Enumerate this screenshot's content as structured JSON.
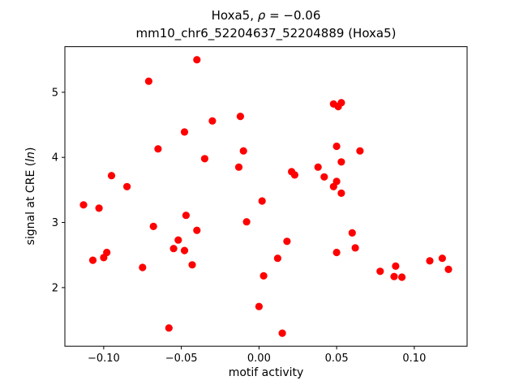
{
  "figure": {
    "title": {
      "part1": "Hoxa5, ",
      "rho": "ρ",
      "part2": " = −0.06"
    },
    "subtitle": "mm10_chr6_52204637_52204889 (Hoxa5)",
    "xlabel": "motif activity",
    "ylabel": {
      "part1": "signal at CRE (",
      "italic": "ln",
      "part2": ")"
    }
  },
  "chart_data": {
    "type": "scatter",
    "title": "Hoxa5, ρ = −0.06",
    "subtitle": "mm10_chr6_52204637_52204889 (Hoxa5)",
    "xlabel": "motif activity",
    "ylabel": "signal at CRE (ln)",
    "xlim": [
      -0.125,
      0.134
    ],
    "ylim": [
      1.1,
      5.7
    ],
    "x_ticks": [
      -0.1,
      -0.05,
      0.0,
      0.05,
      0.1
    ],
    "x_tick_labels": [
      "−0.10",
      "−0.05",
      "0.00",
      "0.05",
      "0.10"
    ],
    "y_ticks": [
      2,
      3,
      4,
      5
    ],
    "y_tick_labels": [
      "2",
      "3",
      "4",
      "5"
    ],
    "grid": false,
    "legend": null,
    "marker_color": "#ff0000",
    "marker_radius": 4.6,
    "points": [
      [
        -0.04,
        5.5
      ],
      [
        -0.071,
        5.17
      ],
      [
        0.048,
        4.82
      ],
      [
        0.053,
        4.84
      ],
      [
        0.051,
        4.78
      ],
      [
        -0.012,
        4.63
      ],
      [
        -0.03,
        4.56
      ],
      [
        -0.048,
        4.39
      ],
      [
        -0.065,
        4.13
      ],
      [
        -0.01,
        4.1
      ],
      [
        0.065,
        4.1
      ],
      [
        0.05,
        4.17
      ],
      [
        0.053,
        3.93
      ],
      [
        -0.035,
        3.98
      ],
      [
        -0.013,
        3.85
      ],
      [
        0.038,
        3.85
      ],
      [
        -0.095,
        3.72
      ],
      [
        0.021,
        3.78
      ],
      [
        0.023,
        3.73
      ],
      [
        0.042,
        3.7
      ],
      [
        0.05,
        3.63
      ],
      [
        0.048,
        3.55
      ],
      [
        0.053,
        3.45
      ],
      [
        0.002,
        3.33
      ],
      [
        -0.113,
        3.27
      ],
      [
        -0.103,
        3.22
      ],
      [
        -0.085,
        3.55
      ],
      [
        -0.047,
        3.11
      ],
      [
        -0.008,
        3.01
      ],
      [
        -0.068,
        2.94
      ],
      [
        -0.04,
        2.88
      ],
      [
        0.06,
        2.84
      ],
      [
        0.018,
        2.71
      ],
      [
        -0.052,
        2.73
      ],
      [
        0.062,
        2.61
      ],
      [
        -0.055,
        2.6
      ],
      [
        -0.048,
        2.57
      ],
      [
        -0.098,
        2.54
      ],
      [
        0.05,
        2.54
      ],
      [
        0.012,
        2.45
      ],
      [
        -0.107,
        2.42
      ],
      [
        -0.1,
        2.46
      ],
      [
        -0.075,
        2.31
      ],
      [
        -0.043,
        2.35
      ],
      [
        0.078,
        2.25
      ],
      [
        0.088,
        2.33
      ],
      [
        0.087,
        2.17
      ],
      [
        0.092,
        2.16
      ],
      [
        0.11,
        2.41
      ],
      [
        0.118,
        2.45
      ],
      [
        0.122,
        2.28
      ],
      [
        0.003,
        2.18
      ],
      [
        0.0,
        1.71
      ],
      [
        -0.058,
        1.38
      ],
      [
        0.015,
        1.3
      ]
    ]
  }
}
